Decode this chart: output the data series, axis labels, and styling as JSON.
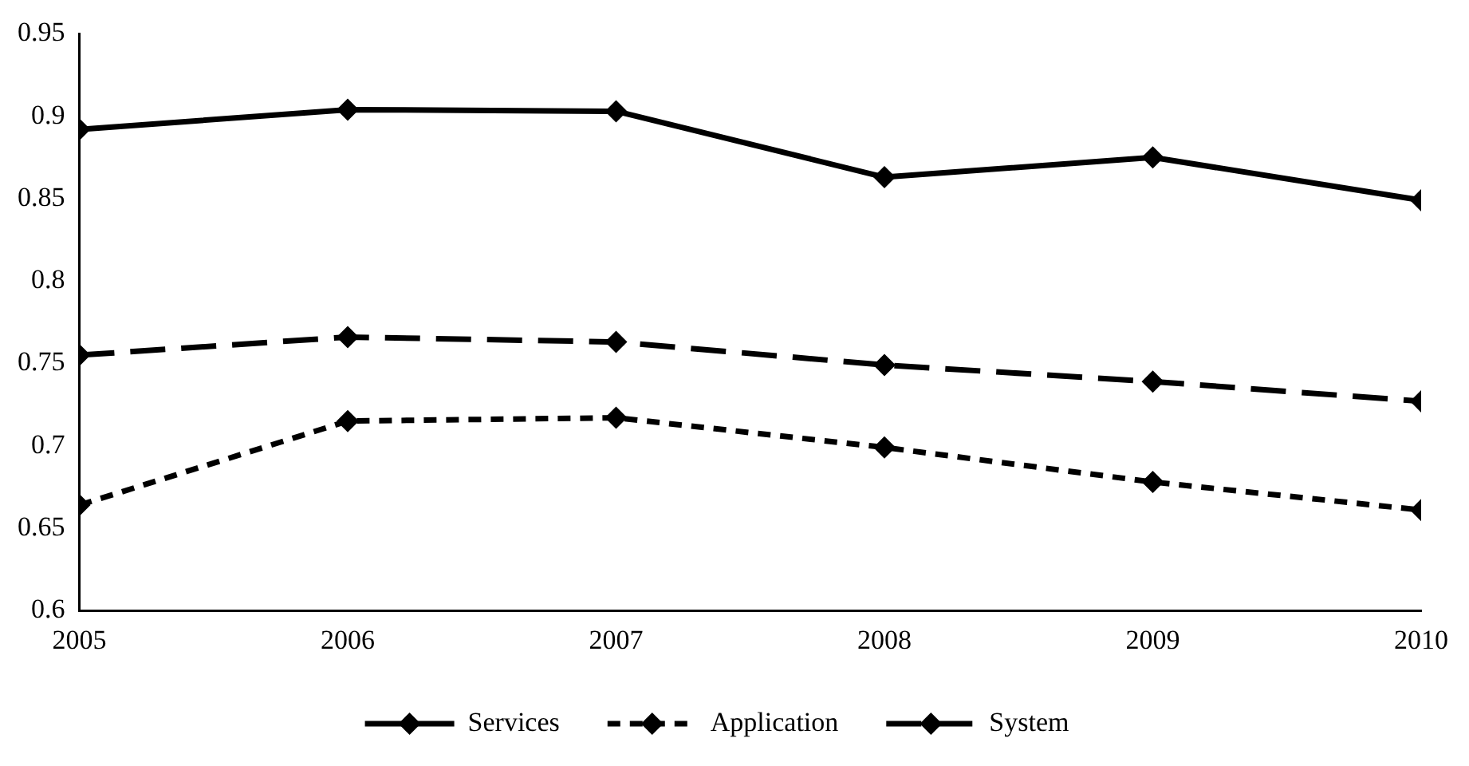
{
  "chart_data": {
    "type": "line",
    "x": [
      2005,
      2006,
      2007,
      2008,
      2009,
      2010
    ],
    "xlim": [
      2005,
      2010
    ],
    "xticks": [
      2005,
      2006,
      2007,
      2008,
      2009,
      2010
    ],
    "ylim": [
      0.6,
      0.95
    ],
    "yticks": [
      0.6,
      0.65,
      0.7,
      0.75,
      0.8,
      0.85,
      0.9,
      0.95
    ],
    "grid": false,
    "legend": "bottom",
    "marker": "diamond",
    "series": [
      {
        "name": "Services",
        "color": "#000000",
        "line_style": "solid",
        "values": [
          0.892,
          0.904,
          0.903,
          0.863,
          0.875,
          0.849
        ]
      },
      {
        "name": "Application",
        "color": "#000000",
        "line_style": "dotted",
        "values": [
          0.664,
          0.715,
          0.717,
          0.699,
          0.678,
          0.661
        ]
      },
      {
        "name": "System",
        "color": "#000000",
        "line_style": "dashed",
        "values": [
          0.755,
          0.766,
          0.763,
          0.749,
          0.739,
          0.727
        ]
      }
    ]
  }
}
